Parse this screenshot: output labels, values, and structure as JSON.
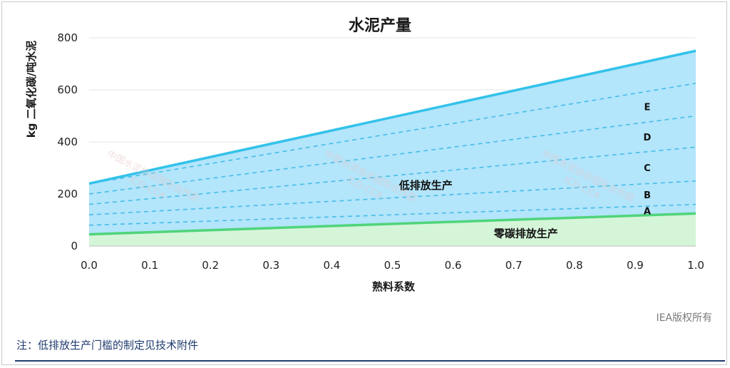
{
  "chart_data": {
    "type": "area",
    "title": "水泥产量",
    "xlabel": "熟料系数",
    "ylabel": "kg 二氧化碳/吨水泥",
    "xlim": [
      0.0,
      1.0
    ],
    "ylim": [
      0,
      800
    ],
    "x_ticks": [
      "0.0",
      "0.1",
      "0.2",
      "0.3",
      "0.4",
      "0.5",
      "0.6",
      "0.7",
      "0.8",
      "0.9",
      "1.0"
    ],
    "y_ticks": [
      "0",
      "200",
      "400",
      "600",
      "800"
    ],
    "grid": true,
    "near_zero_line": {
      "x": [
        0.0,
        1.0
      ],
      "y": [
        45,
        125
      ]
    },
    "low_emission_upper_line": {
      "x": [
        0.0,
        1.0
      ],
      "y": [
        240,
        750
      ]
    },
    "dashed_thresholds": [
      {
        "name": "A",
        "x": [
          0.0,
          1.0
        ],
        "y": [
          80,
          160
        ]
      },
      {
        "name": "B",
        "x": [
          0.0,
          1.0
        ],
        "y": [
          120,
          250
        ]
      },
      {
        "name": "C",
        "x": [
          0.0,
          1.0
        ],
        "y": [
          160,
          380
        ]
      },
      {
        "name": "D",
        "x": [
          0.0,
          1.0
        ],
        "y": [
          200,
          500
        ]
      },
      {
        "name": "E",
        "x": [
          0.0,
          1.0
        ],
        "y": [
          240,
          625
        ]
      }
    ],
    "band_labels": [
      "A",
      "B",
      "C",
      "D",
      "E"
    ],
    "regions": {
      "low": "低排放生产",
      "near_zero": "零碳排放生产"
    },
    "colors": {
      "low_fill": "#b3e5fb",
      "upper_line": "#33c2ea",
      "dashed": "#45bde6",
      "near_zero_fill": "#d5f5d8",
      "near_zero_line": "#4fd47b"
    }
  },
  "watermark_text": "中国水泥协会国际合作部",
  "watermark_sub": "ICD-CCA",
  "copyright": "IEA版权所有",
  "footnote": "注：低排放生产门槛的制定见技术附件"
}
